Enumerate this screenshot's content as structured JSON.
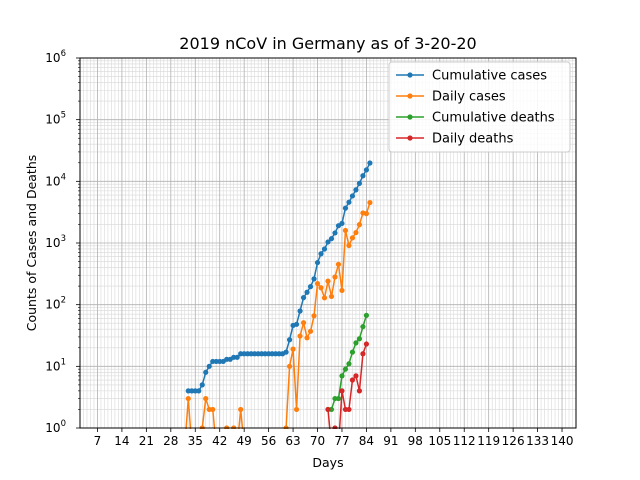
{
  "chart_data": {
    "type": "line",
    "title": "2019 nCoV in Germany as of 3-20-20",
    "xlabel": "Days",
    "ylabel": "Counts of Cases and Deaths",
    "xlim": [
      2,
      144
    ],
    "ylim": [
      1,
      1000000
    ],
    "yscale": "log",
    "grid": true,
    "legend_position": "top-right",
    "x_ticks": [
      7,
      14,
      21,
      28,
      35,
      42,
      49,
      56,
      63,
      70,
      77,
      84,
      91,
      98,
      105,
      112,
      119,
      126,
      133,
      140
    ],
    "x_tick_labels": [
      "7",
      "14",
      "21",
      "28",
      "35",
      "42",
      "49",
      "56",
      "63",
      "70",
      "77",
      "84",
      "91",
      "98",
      "105",
      "112",
      "119",
      "126",
      "133",
      "140"
    ],
    "y_ticks": [
      1,
      10,
      100,
      1000,
      10000,
      100000,
      1000000
    ],
    "y_tick_labels": [
      "10^0",
      "10^1",
      "10^2",
      "10^3",
      "10^4",
      "10^5",
      "10^6"
    ],
    "series": [
      {
        "name": "Cumulative cases",
        "color": "#1f77b4",
        "x": [
          33,
          34,
          35,
          36,
          37,
          38,
          39,
          40,
          41,
          42,
          43,
          44,
          45,
          46,
          47,
          48,
          49,
          50,
          51,
          52,
          53,
          54,
          55,
          56,
          57,
          58,
          59,
          60,
          61,
          62,
          63,
          64,
          65,
          66,
          67,
          68,
          69,
          70,
          71,
          72,
          73,
          74,
          75,
          76,
          77,
          78,
          79,
          80,
          81,
          82,
          83,
          84,
          85
        ],
        "y": [
          4,
          4,
          4,
          4,
          5,
          8,
          10,
          12,
          12,
          12,
          12,
          13,
          13,
          14,
          14,
          16,
          16,
          16,
          16,
          16,
          16,
          16,
          16,
          16,
          16,
          16,
          16,
          16,
          17,
          27,
          46,
          48,
          79,
          130,
          159,
          196,
          262,
          482,
          670,
          799,
          1040,
          1176,
          1457,
          1908,
          2078,
          3675,
          4585,
          5795,
          7272,
          9257,
          12327,
          15320,
          19848
        ]
      },
      {
        "name": "Daily cases",
        "color": "#ff7f0e",
        "x": [
          32,
          33,
          34,
          35,
          36,
          37,
          38,
          39,
          40,
          41,
          42,
          43,
          44,
          45,
          46,
          47,
          48,
          49,
          50,
          51,
          52,
          53,
          54,
          55,
          56,
          57,
          58,
          59,
          60,
          61,
          62,
          63,
          64,
          65,
          66,
          67,
          68,
          69,
          70,
          71,
          72,
          73,
          74,
          75,
          76,
          77,
          78,
          79,
          80,
          81,
          82,
          83,
          84,
          85
        ],
        "y": [
          0,
          3,
          0,
          0,
          0,
          1,
          3,
          2,
          2,
          0,
          0,
          0,
          1,
          0,
          1,
          0,
          2,
          0,
          0,
          0,
          0,
          0,
          0,
          0,
          0,
          0,
          0,
          0,
          0,
          1,
          10,
          19,
          2,
          31,
          51,
          29,
          37,
          66,
          220,
          188,
          129,
          241,
          136,
          281,
          451,
          170,
          1597,
          910,
          1210,
          1477,
          1985,
          3070,
          2993,
          4528
        ]
      },
      {
        "name": "Cumulative deaths",
        "color": "#2ca02c",
        "x": [
          72,
          73,
          74,
          75,
          76,
          77,
          78,
          79,
          80,
          81,
          82,
          83,
          84,
          85
        ],
        "y": [
          0,
          2,
          2,
          3,
          3,
          7,
          9,
          11,
          17,
          24,
          28,
          44,
          67,
          0
        ],
        "x_plot": [
          73,
          74,
          75,
          76,
          77,
          78,
          79,
          80,
          81,
          82,
          83,
          84
        ],
        "y_plot": [
          2,
          2,
          3,
          3,
          7,
          9,
          11,
          17,
          24,
          28,
          44,
          67
        ]
      },
      {
        "name": "Daily deaths",
        "color": "#d62728",
        "x": [
          73,
          74,
          75,
          76,
          77,
          78,
          79,
          80,
          81,
          82,
          83,
          84
        ],
        "y": [
          2,
          0,
          1,
          0,
          4,
          2,
          2,
          6,
          7,
          4,
          16,
          23
        ]
      }
    ]
  }
}
